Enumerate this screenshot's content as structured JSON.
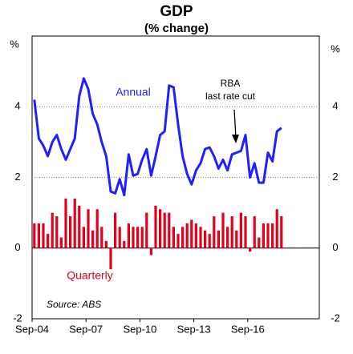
{
  "chart_data": {
    "type": "bar+line",
    "title": "GDP",
    "subtitle": "(% change)",
    "y_unit": "%",
    "categories": [
      "Sep-04",
      null,
      null,
      null,
      null,
      null,
      null,
      null,
      null,
      null,
      null,
      null,
      "Sep-07",
      null,
      null,
      null,
      null,
      null,
      null,
      null,
      null,
      null,
      null,
      null,
      "Sep-10",
      null,
      null,
      null,
      null,
      null,
      null,
      null,
      null,
      null,
      null,
      null,
      "Sep-13",
      null,
      null,
      null,
      null,
      null,
      null,
      null,
      null,
      null,
      null,
      null,
      "Sep-16",
      null,
      null,
      null,
      null,
      null,
      null,
      null
    ],
    "series": [
      {
        "name": "Quarterly",
        "type": "bar",
        "color": "#e3001b",
        "values": [
          0.7,
          0.7,
          0.7,
          0.4,
          1.0,
          0.9,
          0.3,
          1.4,
          0.9,
          1.4,
          1.2,
          0.6,
          1.1,
          0.5,
          1.1,
          0.6,
          0.2,
          -0.6,
          1.0,
          0.6,
          0.2,
          0.7,
          0.6,
          0.6,
          0.6,
          1.0,
          -0.2,
          1.2,
          1.1,
          1.0,
          1.0,
          0.6,
          0.4,
          0.6,
          0.7,
          0.8,
          0.7,
          0.6,
          0.5,
          0.4,
          0.9,
          0.5,
          1.0,
          0.6,
          0.9,
          0.5,
          1.0,
          0.9,
          -0.1,
          0.9,
          0.3,
          0.7,
          0.7,
          0.7,
          1.1,
          0.9
        ]
      },
      {
        "name": "Annual",
        "type": "line",
        "color": "#1f1fff",
        "values": [
          4.2,
          3.1,
          2.9,
          2.6,
          3.0,
          3.2,
          2.8,
          2.5,
          2.8,
          3.1,
          4.3,
          4.8,
          4.5,
          3.8,
          3.5,
          3.0,
          2.6,
          1.6,
          1.55,
          1.95,
          1.5,
          2.65,
          2.05,
          2.1,
          2.5,
          2.8,
          2.05,
          2.6,
          3.2,
          3.3,
          4.6,
          4.55,
          3.5,
          2.6,
          2.1,
          1.8,
          2.2,
          2.4,
          2.8,
          2.85,
          2.6,
          2.25,
          2.5,
          2.2,
          2.65,
          2.7,
          2.75,
          3.2,
          2.0,
          2.4,
          1.85,
          1.85,
          2.7,
          2.45,
          3.3,
          3.4
        ]
      }
    ],
    "annotations": [
      "RBA",
      "last rate cut"
    ],
    "source": "Source: ABS",
    "ylim": [
      -2,
      6
    ],
    "yticks": [
      -2,
      0,
      2,
      4
    ],
    "grid": true
  }
}
